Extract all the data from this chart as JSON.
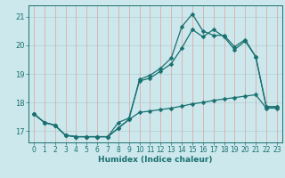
{
  "title": "",
  "xlabel": "Humidex (Indice chaleur)",
  "background_color": "#cce8ec",
  "line_color": "#1a7070",
  "grid_color_h": "#b0d0d5",
  "grid_color_v": "#e0a0a0",
  "xlim": [
    -0.5,
    23.5
  ],
  "ylim": [
    16.6,
    21.4
  ],
  "yticks": [
    17,
    18,
    19,
    20,
    21
  ],
  "xticks": [
    0,
    1,
    2,
    3,
    4,
    5,
    6,
    7,
    8,
    9,
    10,
    11,
    12,
    13,
    14,
    15,
    16,
    17,
    18,
    19,
    20,
    21,
    22,
    23
  ],
  "line1_y": [
    17.6,
    17.3,
    17.2,
    16.85,
    16.8,
    16.8,
    16.8,
    16.8,
    17.3,
    17.45,
    18.75,
    18.85,
    19.1,
    19.35,
    19.9,
    20.55,
    20.3,
    20.55,
    20.3,
    19.85,
    20.15,
    19.6,
    17.85,
    17.85
  ],
  "line2_y": [
    17.6,
    17.3,
    17.2,
    16.85,
    16.8,
    16.8,
    16.8,
    16.8,
    17.1,
    17.4,
    18.8,
    18.95,
    19.2,
    19.55,
    20.65,
    21.1,
    20.5,
    20.35,
    20.35,
    19.95,
    20.2,
    19.6,
    17.85,
    17.85
  ],
  "line3_y": [
    17.6,
    17.3,
    17.2,
    16.85,
    16.8,
    16.8,
    16.8,
    16.8,
    17.1,
    17.4,
    17.65,
    17.7,
    17.75,
    17.8,
    17.87,
    17.95,
    18.0,
    18.07,
    18.12,
    18.17,
    18.22,
    18.27,
    17.8,
    17.8
  ],
  "marker_size": 2.5,
  "line_width": 0.9,
  "xlabel_fontsize": 6.5,
  "tick_fontsize": 5.5
}
